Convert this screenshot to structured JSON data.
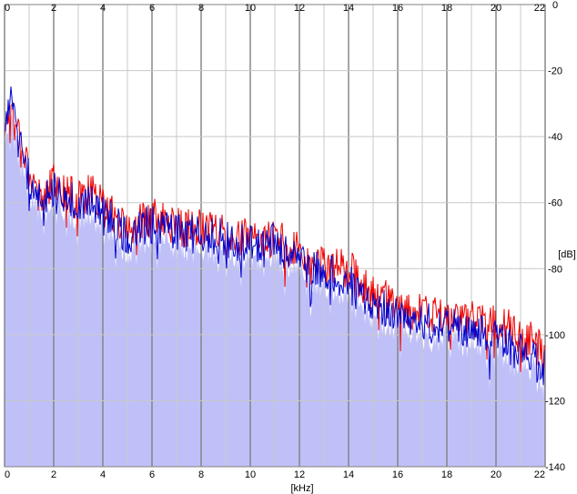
{
  "chart_data": {
    "type": "line",
    "title": "",
    "xlabel": "[kHz]",
    "ylabel": "[dB]",
    "xlim": [
      0,
      22
    ],
    "ylim": [
      -140,
      0
    ],
    "x_ticks": [
      "0",
      "2",
      "4",
      "6",
      "8",
      "10",
      "12",
      "14",
      "16",
      "18",
      "20",
      "22"
    ],
    "y_ticks": [
      "0",
      "-20",
      "-40",
      "-60",
      "-80",
      "-100",
      "-120",
      "-140"
    ],
    "grid": true,
    "legend": "none",
    "colors": {
      "background": "#ffffff",
      "fill": "#c0c0f8",
      "grid_major": "#808080",
      "grid_minor": "#c8c8c8",
      "series_red": "#ee0000",
      "series_blue": "#0000cc"
    },
    "series": [
      {
        "color": "#ee0000",
        "x": [
          0,
          0.25,
          0.5,
          0.75,
          1,
          1.25,
          1.5,
          1.75,
          2,
          2.5,
          3,
          3.5,
          4,
          4.5,
          5,
          5.5,
          6,
          6.5,
          7,
          7.5,
          8,
          8.5,
          9,
          9.5,
          10,
          10.5,
          11,
          11.5,
          12,
          12.5,
          13,
          13.5,
          14,
          14.5,
          15,
          15.5,
          16,
          16.5,
          17,
          17.5,
          18,
          18.5,
          19,
          19.5,
          20,
          20.5,
          21,
          21.5,
          22
        ],
        "y": [
          -38,
          -30,
          -35,
          -42,
          -50,
          -55,
          -58,
          -56,
          -54,
          -57,
          -58,
          -57,
          -60,
          -65,
          -68,
          -66,
          -64,
          -66,
          -67,
          -68,
          -67,
          -68,
          -69,
          -70,
          -71,
          -72,
          -70,
          -73,
          -75,
          -77,
          -79,
          -79,
          -80,
          -84,
          -88,
          -89,
          -91,
          -92,
          -94,
          -94,
          -95,
          -96,
          -95,
          -96,
          -97,
          -98,
          -100,
          -102,
          -106
        ]
      },
      {
        "color": "#0000cc",
        "x": [
          0,
          0.25,
          0.5,
          0.75,
          1,
          1.25,
          1.5,
          1.75,
          2,
          2.5,
          3,
          3.5,
          4,
          4.5,
          5,
          5.5,
          6,
          6.5,
          7,
          7.5,
          8,
          8.5,
          9,
          9.5,
          10,
          10.5,
          11,
          11.5,
          12,
          12.5,
          13,
          13.5,
          14,
          14.5,
          15,
          15.5,
          16,
          16.5,
          17,
          17.5,
          18,
          18.5,
          19,
          19.5,
          20,
          20.5,
          21,
          21.5,
          22
        ],
        "y": [
          -36,
          -28,
          -36,
          -44,
          -52,
          -56,
          -60,
          -57,
          -55,
          -59,
          -60,
          -59,
          -62,
          -67,
          -70,
          -68,
          -66,
          -68,
          -69,
          -70,
          -69,
          -70,
          -71,
          -72,
          -73,
          -73,
          -72,
          -75,
          -78,
          -80,
          -82,
          -82,
          -84,
          -88,
          -92,
          -92,
          -94,
          -96,
          -96,
          -97,
          -97,
          -99,
          -98,
          -100,
          -101,
          -102,
          -104,
          -106,
          -110
        ]
      }
    ]
  }
}
